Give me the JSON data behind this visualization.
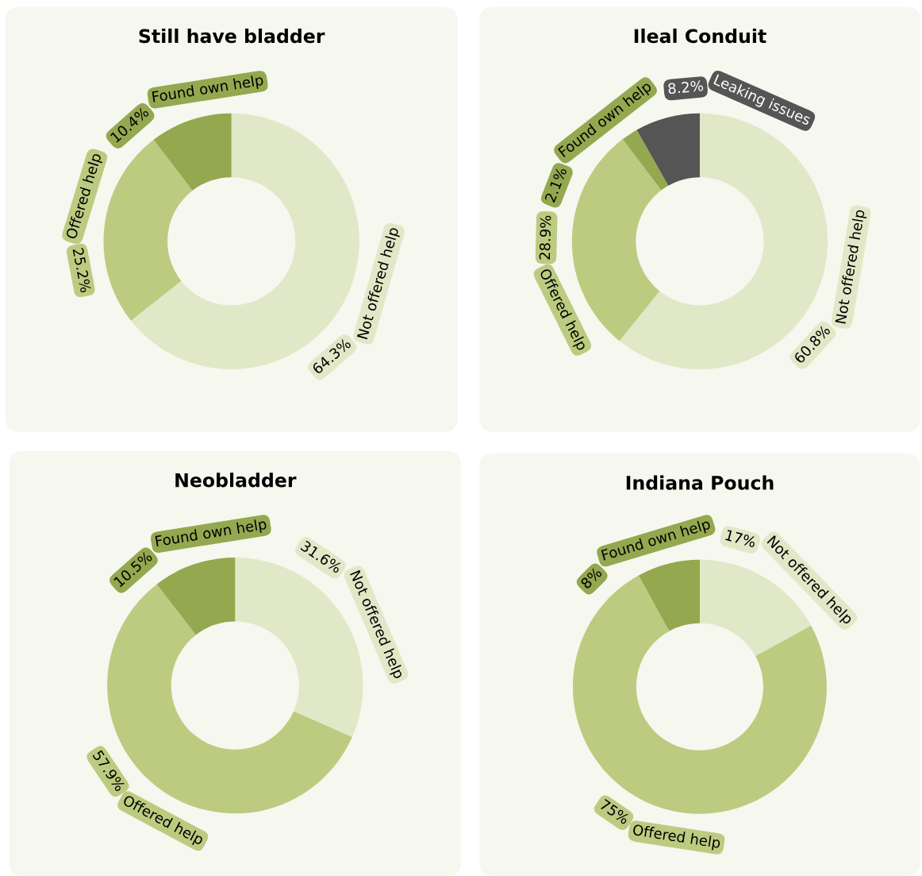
{
  "chart_data": [
    {
      "type": "donut",
      "title": "Still have bladder",
      "categories": [
        "Not offered help",
        "Offered help",
        "Found own help"
      ],
      "values": [
        64.3,
        25.2,
        10.4
      ],
      "colors": [
        "#e1e8c7",
        "#bccb80",
        "#94a84f"
      ],
      "value_labels": [
        "64.3%",
        "25.2%",
        "10.4%"
      ]
    },
    {
      "type": "donut",
      "title": "Ileal Conduit",
      "categories": [
        "Not offered help",
        "Offered help",
        "Found own help",
        "Leaking issues"
      ],
      "values": [
        60.8,
        28.9,
        2.1,
        8.2
      ],
      "colors": [
        "#e1e8c7",
        "#bccb80",
        "#94a84f",
        "#555555"
      ],
      "value_labels": [
        "60.8%",
        "28.9%",
        "2.1%",
        "8.2%"
      ]
    },
    {
      "type": "donut",
      "title": "Neobladder",
      "categories": [
        "Not offered help",
        "Offered help",
        "Found own help"
      ],
      "values": [
        31.6,
        57.9,
        10.5
      ],
      "colors": [
        "#e1e8c7",
        "#bccb80",
        "#94a84f"
      ],
      "value_labels": [
        "31.6%",
        "57.9%",
        "10.5%"
      ]
    },
    {
      "type": "donut",
      "title": "Indiana Pouch",
      "categories": [
        "Not offered help",
        "Offered help",
        "Found own help"
      ],
      "values": [
        17,
        75,
        8
      ],
      "colors": [
        "#e1e8c7",
        "#bccb80",
        "#94a84f"
      ],
      "value_labels": [
        "17%",
        "75%",
        "8%"
      ]
    }
  ]
}
